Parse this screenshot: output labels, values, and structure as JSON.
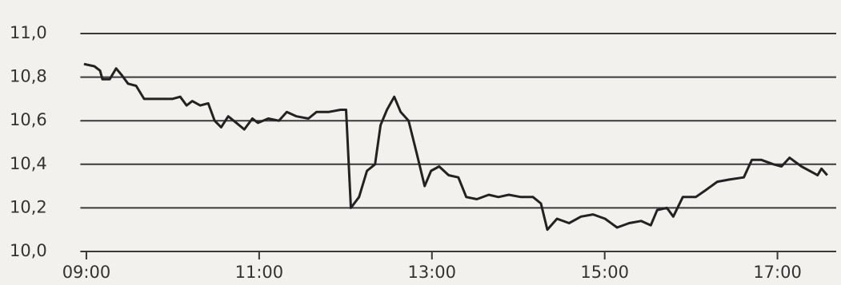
{
  "chart_data": {
    "type": "line",
    "x": [
      8.972,
      9.092,
      9.158,
      9.186,
      9.27,
      9.344,
      9.408,
      9.482,
      9.576,
      9.668,
      9.854,
      9.994,
      10.086,
      10.16,
      10.226,
      10.318,
      10.41,
      10.484,
      10.56,
      10.642,
      10.736,
      10.828,
      10.922,
      10.986,
      11.106,
      11.228,
      11.32,
      11.432,
      11.57,
      11.664,
      11.802,
      11.942,
      12.006,
      12.062,
      12.156,
      12.248,
      12.342,
      12.406,
      12.48,
      12.564,
      12.638,
      12.73,
      12.824,
      12.916,
      12.99,
      13.084,
      13.194,
      13.306,
      13.398,
      13.52,
      13.658,
      13.77,
      13.89,
      14.03,
      14.17,
      14.262,
      14.336,
      14.448,
      14.588,
      14.726,
      14.866,
      15.004,
      15.144,
      15.284,
      15.422,
      15.534,
      15.608,
      15.72,
      15.794,
      15.904,
      16.054,
      16.164,
      16.304,
      16.444,
      16.61,
      16.704,
      16.814,
      16.954,
      17.046,
      17.14,
      17.278,
      17.418,
      17.464,
      17.51,
      17.576
    ],
    "values": [
      10.86,
      10.85,
      10.83,
      10.79,
      10.79,
      10.84,
      10.81,
      10.77,
      10.76,
      10.7,
      10.7,
      10.7,
      10.71,
      10.67,
      10.69,
      10.67,
      10.68,
      10.6,
      10.57,
      10.62,
      10.59,
      10.56,
      10.61,
      10.59,
      10.61,
      10.6,
      10.64,
      10.62,
      10.61,
      10.64,
      10.64,
      10.65,
      10.65,
      10.2,
      10.25,
      10.37,
      10.4,
      10.58,
      10.65,
      10.71,
      10.64,
      10.6,
      10.45,
      10.3,
      10.37,
      10.39,
      10.35,
      10.34,
      10.25,
      10.24,
      10.26,
      10.25,
      10.26,
      10.25,
      10.25,
      10.22,
      10.1,
      10.15,
      10.13,
      10.16,
      10.17,
      10.15,
      10.11,
      10.13,
      10.14,
      10.12,
      10.19,
      10.2,
      10.16,
      10.25,
      10.25,
      10.28,
      10.32,
      10.33,
      10.34,
      10.42,
      10.42,
      10.4,
      10.39,
      10.43,
      10.39,
      10.36,
      10.35,
      10.38,
      10.35
    ],
    "color": "#222222",
    "xlim": [
      8.93,
      17.68
    ],
    "xticks": [
      {
        "value": 9,
        "label": "09:00"
      },
      {
        "value": 11,
        "label": "11:00"
      },
      {
        "value": 13,
        "label": "13:00"
      },
      {
        "value": 15,
        "label": "15:00"
      },
      {
        "value": 17,
        "label": "17:00"
      }
    ],
    "ylim": [
      10.0,
      11.0
    ],
    "yticks": [
      {
        "value": 10.0,
        "label": "10,0"
      },
      {
        "value": 10.2,
        "label": "10,2"
      },
      {
        "value": 10.4,
        "label": "10,4"
      },
      {
        "value": 10.6,
        "label": "10,6"
      },
      {
        "value": 10.8,
        "label": "10,8"
      },
      {
        "value": 11.0,
        "label": "11,0"
      }
    ],
    "grid": true
  }
}
